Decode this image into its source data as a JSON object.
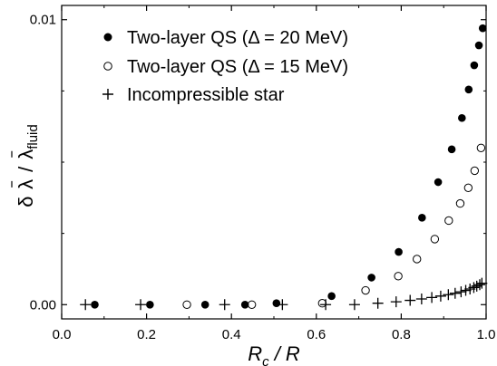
{
  "chart_data": {
    "type": "scatter",
    "xlabel": {
      "main": "R",
      "sub": "c",
      "rest": " / R"
    },
    "ylabel": {
      "delta": "δ",
      "lambda": "λ",
      "slash": "/",
      "sub": "fluid"
    },
    "xlim": [
      0.0,
      1.0
    ],
    "ylim": [
      -0.0005,
      0.0105
    ],
    "xticks": [
      0.0,
      0.2,
      0.4,
      0.6,
      0.8,
      1.0
    ],
    "xtick_labels": [
      "0.0",
      "0.2",
      "0.4",
      "0.6",
      "0.8",
      "1.0"
    ],
    "yticks": [
      0.0,
      0.01
    ],
    "ytick_labels": [
      "0.00",
      "0.01"
    ],
    "legend_position": "top-left",
    "series": [
      {
        "name": "Two-layer QS (Δ = 20 MeV)",
        "marker": "filled-circle",
        "x": [
          0.078,
          0.208,
          0.338,
          0.432,
          0.506,
          0.636,
          0.73,
          0.794,
          0.849,
          0.887,
          0.919,
          0.943,
          0.959,
          0.972,
          0.983,
          0.992
        ],
        "y": [
          0.0,
          0.0,
          0.0,
          0.0,
          5e-05,
          0.0003,
          0.00095,
          0.00185,
          0.00305,
          0.0043,
          0.00545,
          0.00655,
          0.00755,
          0.0084,
          0.0091,
          0.0097
        ]
      },
      {
        "name": "Two-layer QS (Δ = 15 MeV)",
        "marker": "open-circle",
        "x": [
          0.295,
          0.448,
          0.614,
          0.716,
          0.793,
          0.837,
          0.879,
          0.912,
          0.939,
          0.958,
          0.973,
          0.988
        ],
        "y": [
          0.0,
          0.0,
          5e-05,
          0.0005,
          0.001,
          0.0016,
          0.0023,
          0.00295,
          0.00355,
          0.0041,
          0.0047,
          0.0055
        ]
      },
      {
        "name": "Incompressible star",
        "marker": "plus",
        "x": [
          0.056,
          0.186,
          0.384,
          0.52,
          0.622,
          0.69,
          0.745,
          0.788,
          0.821,
          0.848,
          0.872,
          0.893,
          0.911,
          0.927,
          0.941,
          0.952,
          0.962,
          0.971,
          0.978,
          0.985,
          0.99
        ],
        "y": [
          0.0,
          0.0,
          0.0,
          0.0,
          0.0,
          0.0,
          5e-05,
          0.0001,
          0.00015,
          0.0002,
          0.00025,
          0.0003,
          0.00035,
          0.0004,
          0.00045,
          0.0005,
          0.00055,
          0.0006,
          0.00065,
          0.0007,
          0.00075
        ]
      }
    ]
  }
}
